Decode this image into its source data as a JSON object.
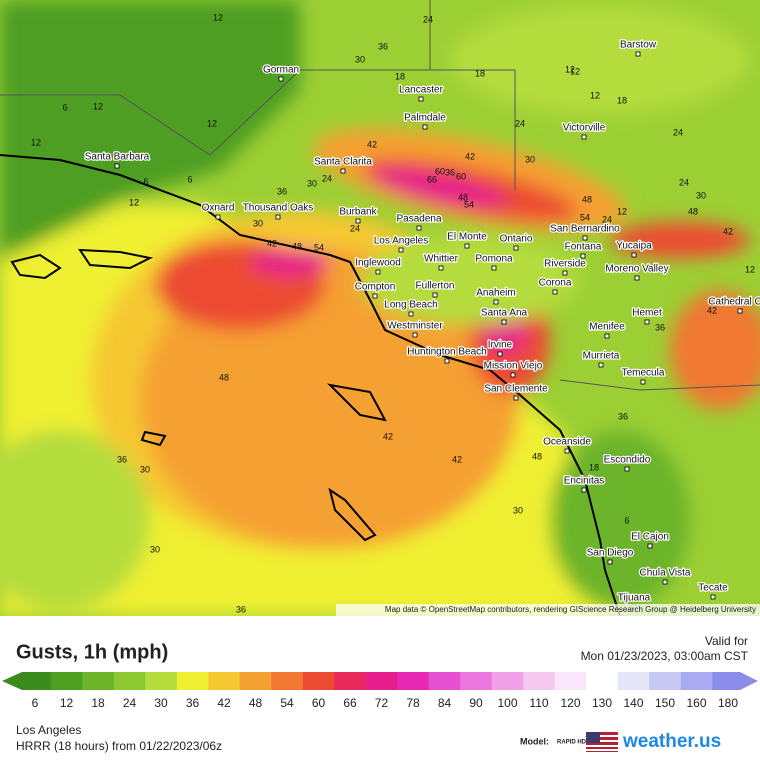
{
  "map": {
    "cities": [
      "Barstow",
      "Gorman",
      "Lancaster",
      "Palmdale",
      "Victorville",
      "Santa Barbara",
      "Santa Clarita",
      "Oxnard",
      "Thousand Oaks",
      "Burbank",
      "Pasadena",
      "San Bernardino",
      "Los Angeles",
      "El Monte",
      "Ontario",
      "Fontana",
      "Yucaipa",
      "Inglewood",
      "Whittier",
      "Pomona",
      "Riverside",
      "Moreno Valley",
      "Compton",
      "Fullerton",
      "Anaheim",
      "Corona",
      "Cathedral City",
      "Long Beach",
      "Hemet",
      "Westminster",
      "Santa Ana",
      "Menifee",
      "Irvine",
      "Huntington Beach",
      "Murrieta",
      "Mission Viejo",
      "Temecula",
      "San Clemente",
      "Oceanside",
      "Escondido",
      "Encinitas",
      "El Cajon",
      "San Diego",
      "Chula Vista",
      "Tecate",
      "Tijuana"
    ],
    "contour_labels": [
      24,
      36,
      30,
      12,
      12,
      18,
      18,
      24,
      12,
      6,
      12,
      12,
      12,
      6,
      12,
      6,
      36,
      42,
      30,
      24,
      48,
      42,
      54,
      60,
      36,
      66,
      60,
      48,
      54,
      42,
      30,
      24,
      18,
      30,
      24,
      48,
      54,
      24,
      12,
      48,
      42,
      30,
      36,
      48,
      36,
      30,
      42,
      48,
      42,
      30,
      36,
      30,
      36,
      12,
      18,
      6,
      24,
      12,
      42
    ],
    "attribution": "Map data © OpenStreetMap contributors, rendering GIScience Research Group @ Heidelberg University"
  },
  "legend": {
    "title": "Gusts, 1h (mph)",
    "valid_label": "Valid for",
    "valid_time": "Mon 01/23/2023, 03:00am CST",
    "scale": [
      {
        "label": 6,
        "color": "#3a8a1e"
      },
      {
        "label": 12,
        "color": "#4e9e22"
      },
      {
        "label": 18,
        "color": "#6cb42a"
      },
      {
        "label": 24,
        "color": "#8cc832"
      },
      {
        "label": 30,
        "color": "#b4dc3c"
      },
      {
        "label": 36,
        "color": "#f0f032"
      },
      {
        "label": 42,
        "color": "#f5c832"
      },
      {
        "label": 48,
        "color": "#f5a032"
      },
      {
        "label": 54,
        "color": "#f07832"
      },
      {
        "label": 60,
        "color": "#ec4b32"
      },
      {
        "label": 66,
        "color": "#e8285a"
      },
      {
        "label": 72,
        "color": "#e61e8c"
      },
      {
        "label": 78,
        "color": "#e628b4"
      },
      {
        "label": 84,
        "color": "#e650d2"
      },
      {
        "label": 90,
        "color": "#eb78dc"
      },
      {
        "label": 100,
        "color": "#f0a0e6"
      },
      {
        "label": 110,
        "color": "#f5c8f0"
      },
      {
        "label": 120,
        "color": "#fae6fa"
      },
      {
        "label": 130,
        "color": "#ffffff"
      },
      {
        "label": 140,
        "color": "#e6e6fa"
      },
      {
        "label": 150,
        "color": "#c8c8f5"
      },
      {
        "label": 160,
        "color": "#aaaaf0"
      },
      {
        "label": 180,
        "color": "#8c8ceb"
      }
    ]
  },
  "footer": {
    "region": "Los Angeles",
    "model_run": "HRRR (18 hours)  from  01/22/2023/06z",
    "model_label": "Model:",
    "model_badge": "RAPID HD",
    "brand": "weather.us"
  }
}
